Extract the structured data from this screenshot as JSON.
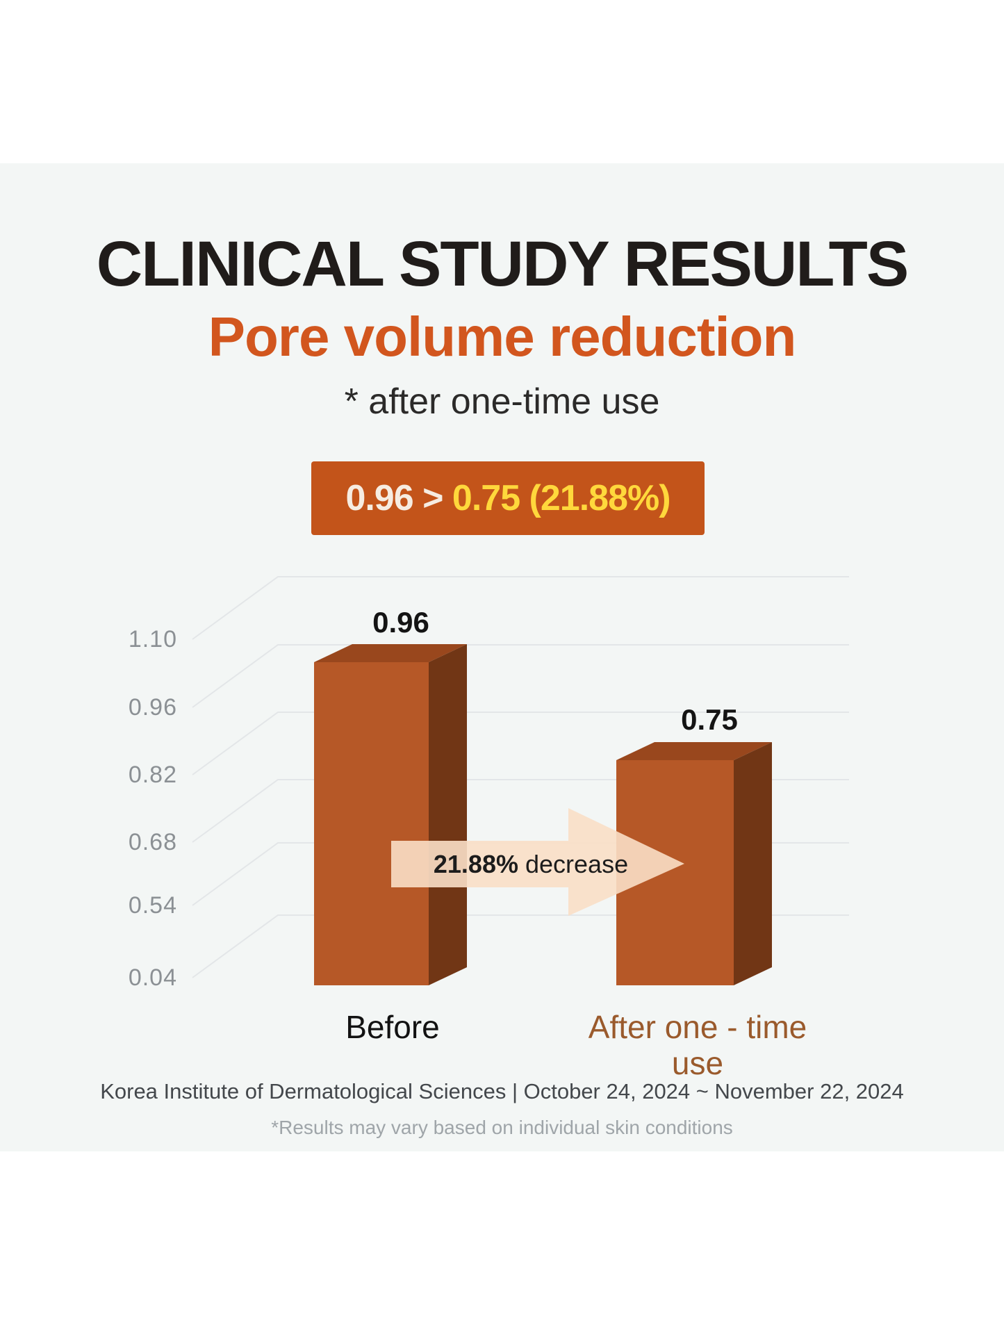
{
  "page": {
    "title": "CLINICAL STUDY RESULTS",
    "subtitle": "Pore volume reduction",
    "note": "* after one-time use",
    "badge": {
      "before_part": "0.96 > ",
      "after_part": "0.75 (21.88%)"
    },
    "footer_line1": "Korea Institute of Dermatological Sciences | October 24, 2024 ~ November 22, 2024",
    "footer_line2": "*Results may vary based on individual skin conditions"
  },
  "colors": {
    "accent_orange": "#d2561e",
    "badge_bg": "#c3541a",
    "badge_text_before": "#f6ece1",
    "badge_text_after": "#ffd83c",
    "bar_front": "#b65827",
    "bar_top": "#99471d",
    "bar_side": "#713615",
    "gridline": "#e3e6e8",
    "tick_label": "#8b9094",
    "arrow_fill": "#fadfc7",
    "after_label": "#9a5a2c",
    "band_bg": "#f3f6f5"
  },
  "chart_data": {
    "type": "bar",
    "style": "3d-column",
    "title": "Pore volume reduction",
    "subtitle": "after one-time use",
    "categories": [
      "Before",
      "After one - time use"
    ],
    "values": [
      0.96,
      0.75
    ],
    "value_labels": [
      "0.96",
      "0.75"
    ],
    "change_bold": "21.88%",
    "change_rest": " decrease",
    "change_percent": 21.88,
    "summary": "0.96 > 0.75 (21.88%)",
    "y_ticks": [
      "1.10",
      "0.96",
      "0.82",
      "0.68",
      "0.54",
      "0.04"
    ],
    "ylim": [
      0.04,
      1.1
    ],
    "grid": true,
    "legend": false,
    "source": "Korea Institute of Dermatological Sciences",
    "period": "October 24, 2024 ~ November 22, 2024"
  }
}
